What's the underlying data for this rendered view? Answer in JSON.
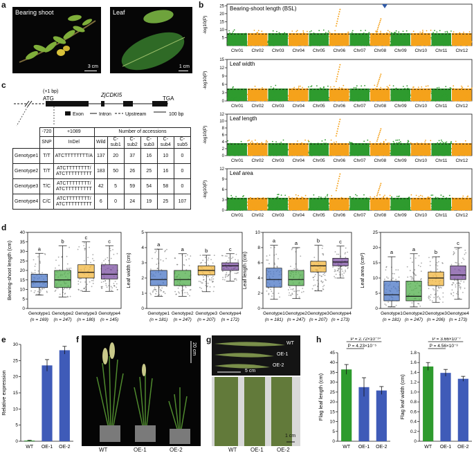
{
  "panel_labels": {
    "a": "a",
    "b": "b",
    "c": "c",
    "d": "d",
    "e": "e",
    "f": "f",
    "g": "g",
    "h": "h"
  },
  "panel_a": {
    "photo1_label": "Bearing shoot",
    "photo1_scale": "3 cm",
    "photo2_label": "Leaf",
    "photo2_scale": "1 cm"
  },
  "panel_b": {
    "ylabel": "-log10(P)",
    "chromosomes": [
      "Chr01",
      "Chr02",
      "Chr03",
      "Chr04",
      "Chr05",
      "Chr06",
      "Chr07",
      "Chr08",
      "Chr09",
      "Chr10",
      "Chr11",
      "Chr12"
    ],
    "plots": [
      {
        "title": "Bearing-shoot length (BSL)",
        "yticks": [
          "5",
          "10",
          "15",
          "20",
          "25"
        ],
        "ymax": 26
      },
      {
        "title": "Leaf width",
        "yticks": [
          "0",
          "3",
          "6",
          "9",
          "12",
          "15"
        ],
        "ymax": 15
      },
      {
        "title": "Leaf length",
        "yticks": [
          "0",
          "2",
          "4",
          "6",
          "8",
          "10",
          "12"
        ],
        "ymax": 12
      },
      {
        "title": "Leaf area",
        "yticks": [
          "0",
          "3",
          "6",
          "9",
          "12"
        ],
        "ymax": 12
      }
    ],
    "colors": {
      "odd": "#2e9b2e",
      "even": "#f5a21b",
      "marker": "#2f5aa8"
    }
  },
  "panel_c": {
    "insert_label": "(+1 bp)",
    "start_codon": "ATG",
    "gene_name": "ZjCDKI5",
    "stop_codon": "TGA",
    "legend_exon": "Exon",
    "legend_intron": "Intron",
    "legend_upstream": "Upstream",
    "scale": "100 bp",
    "table": {
      "hdr_pos1": "-720",
      "hdr_pos2": "+1089",
      "hdr_accessions": "Number of accessions",
      "hdr_snp": "SNP",
      "hdr_indel": "InDel",
      "hdr_cols": [
        "Wild",
        "C-sub1",
        "C-sub2",
        "C-sub3",
        "C-sub4",
        "C-sub5"
      ],
      "rows": [
        {
          "name": "Genotype1",
          "snp": "T/T",
          "indel1": "ATCTTTTTTTT/A",
          "indel2": "",
          "counts": [
            "137",
            "20",
            "37",
            "16",
            "10",
            "0"
          ]
        },
        {
          "name": "Genotype2",
          "snp": "T/T",
          "indel1": "ATCTTTTTTTT/",
          "indel2": "ATCTTTTTTTTT",
          "counts": [
            "183",
            "50",
            "26",
            "25",
            "16",
            "0"
          ]
        },
        {
          "name": "Genotype3",
          "snp": "T/C",
          "indel1": "ATCTTTTTTTT/",
          "indel2": "ATCTTTTTTTTT",
          "counts": [
            "42",
            "5",
            "59",
            "54",
            "58",
            "0"
          ]
        },
        {
          "name": "Genotype4",
          "snp": "C/C",
          "indel1": "ATCTTTTTTTT/",
          "indel2": "ATCTTTTTTTTT",
          "counts": [
            "6",
            "0",
            "24",
            "19",
            "25",
            "107"
          ]
        }
      ]
    }
  },
  "panel_d": {
    "plots": [
      {
        "ylabel": "Bearing-shoot  length (cm)",
        "yticks": [
          "0",
          "5",
          "10",
          "15",
          "20",
          "25",
          "30",
          "35",
          "40"
        ],
        "ymin": 0,
        "ymax": 40,
        "groups": [
          "Genotype1",
          "Genotype2",
          "Genotype3",
          "Genotype4"
        ],
        "ns": [
          "(n = 169)",
          "(n = 247)",
          "(n = 180)",
          "(n = 145)"
        ],
        "letters": [
          "a",
          "b",
          "c",
          "c"
        ],
        "boxes": [
          {
            "q1": 11,
            "med": 14,
            "q3": 18,
            "lo": 7,
            "hi": 29
          },
          {
            "q1": 11,
            "med": 15,
            "q3": 20,
            "lo": 6,
            "hi": 33
          },
          {
            "q1": 16,
            "med": 19,
            "q3": 23,
            "lo": 9,
            "hi": 35
          },
          {
            "q1": 15.5,
            "med": 18,
            "q3": 23,
            "lo": 9,
            "hi": 33
          }
        ]
      },
      {
        "ylabel": "Leaf width (cm)",
        "yticks": [
          "0",
          "1",
          "2",
          "3",
          "4",
          "5"
        ],
        "ymin": 0,
        "ymax": 5,
        "groups": [
          "Genotype1",
          "Genotype2",
          "Genotype3",
          "Genotype4"
        ],
        "ns": [
          "(n = 181)",
          "(n = 247)",
          "(n = 207)",
          "(n = 172)"
        ],
        "letters": [
          "a",
          "a",
          "b",
          "c"
        ],
        "boxes": [
          {
            "q1": 1.5,
            "med": 1.9,
            "q3": 2.5,
            "lo": 0.8,
            "hi": 3.9
          },
          {
            "q1": 1.5,
            "med": 1.9,
            "q3": 2.5,
            "lo": 0.8,
            "hi": 3.6
          },
          {
            "q1": 2.2,
            "med": 2.5,
            "q3": 2.8,
            "lo": 1.1,
            "hi": 3.5
          },
          {
            "q1": 2.5,
            "med": 2.8,
            "q3": 3.0,
            "lo": 1.8,
            "hi": 3.6
          }
        ]
      },
      {
        "ylabel": "Leaf length (cm)",
        "yticks": [
          "0",
          "2",
          "4",
          "6",
          "8",
          "10"
        ],
        "ymin": 0,
        "ymax": 10,
        "groups": [
          "Genotype1",
          "Genotype2",
          "Genotype3",
          "Genotype4"
        ],
        "ns": [
          "(n = 181)",
          "(n = 247)",
          "(n = 207)",
          "(n = 173)"
        ],
        "letters": [
          "a",
          "a",
          "b",
          "c"
        ],
        "boxes": [
          {
            "q1": 2.8,
            "med": 3.8,
            "q3": 5.3,
            "lo": 1.2,
            "hi": 8.3
          },
          {
            "q1": 3.0,
            "med": 3.8,
            "q3": 5.0,
            "lo": 1.3,
            "hi": 8.0
          },
          {
            "q1": 4.8,
            "med": 5.6,
            "q3": 6.2,
            "lo": 2.3,
            "hi": 8.3
          },
          {
            "q1": 5.6,
            "med": 6.1,
            "q3": 6.6,
            "lo": 4.0,
            "hi": 8.2
          }
        ]
      },
      {
        "ylabel": "Leaf area (cm²)",
        "yticks": [
          "0",
          "5",
          "10",
          "15",
          "20",
          "25"
        ],
        "ymin": 0,
        "ymax": 25,
        "groups": [
          "Genotype1",
          "Genotype2",
          "Genotype3",
          "Genotype4"
        ],
        "ns": [
          "(n = 181)",
          "(n = 247)",
          "(n = 206)",
          "(n = 173)"
        ],
        "letters": [
          "a",
          "a",
          "b",
          "c"
        ],
        "boxes": [
          {
            "q1": 2.5,
            "med": 4.5,
            "q3": 9,
            "lo": 0.5,
            "hi": 17
          },
          {
            "q1": 2.5,
            "med": 4,
            "q3": 9,
            "lo": 0.5,
            "hi": 18
          },
          {
            "q1": 7.5,
            "med": 10,
            "q3": 12,
            "lo": 2,
            "hi": 17
          },
          {
            "q1": 9.5,
            "med": 11,
            "q3": 14,
            "lo": 3,
            "hi": 20
          }
        ]
      }
    ],
    "colors": [
      "#4a76c6",
      "#4fae4a",
      "#f2b63c",
      "#7b4fa0"
    ]
  },
  "panel_e": {
    "ylabel": "Relative expression",
    "yticks": [
      "0",
      "5",
      "10",
      "15",
      "20",
      "25",
      "30"
    ],
    "categories": [
      "WT",
      "OE-1",
      "OE-2"
    ],
    "values": [
      0.2,
      23.5,
      28.2
    ],
    "errors": [
      0.1,
      1.8,
      1.2
    ],
    "ymax": 30,
    "colors": [
      "#2e9b2e",
      "#3f5bb8",
      "#3f5bb8"
    ]
  },
  "panel_f": {
    "scale": "20 cm",
    "labels": [
      "WT",
      "OE-1",
      "OE-2"
    ]
  },
  "panel_g": {
    "labels_top": [
      "WT",
      "OE-1",
      "OE-2"
    ],
    "scale_top": "5 cm",
    "labels_bottom": [
      "WT",
      "OE-1",
      "OE-2"
    ],
    "scale_bottom": "1 cm"
  },
  "panel_h": {
    "plots": [
      {
        "ylabel": "Flag leaf length (cm)",
        "yticks": [
          "0",
          "5",
          "10",
          "15",
          "20",
          "25",
          "30",
          "35",
          "40",
          "45"
        ],
        "ymax": 45,
        "categories": [
          "WT",
          "OE-1",
          "OE-2"
        ],
        "values": [
          36.5,
          27.5,
          25.8
        ],
        "errors": [
          2.5,
          4.8,
          2.0
        ],
        "p1": "P = 4.23×10⁻⁵",
        "p2": "P = 2.72×10⁻¹⁰"
      },
      {
        "ylabel": "Flag leaf width (cm)",
        "yticks": [
          "0",
          "0.2",
          "0.4",
          "0.6",
          "0.8",
          "1.0",
          "1.2",
          "1.4",
          "1.6",
          "1.8"
        ],
        "ymax": 1.8,
        "categories": [
          "WT",
          "OE-1",
          "OE-2"
        ],
        "values": [
          1.52,
          1.39,
          1.27
        ],
        "errors": [
          0.08,
          0.07,
          0.05
        ],
        "p1": "P = 4.56×10⁻³",
        "p2": "P = 3.66×10⁻⁷"
      }
    ],
    "colors": [
      "#2e9b2e",
      "#3f5bb8",
      "#3f5bb8"
    ]
  }
}
